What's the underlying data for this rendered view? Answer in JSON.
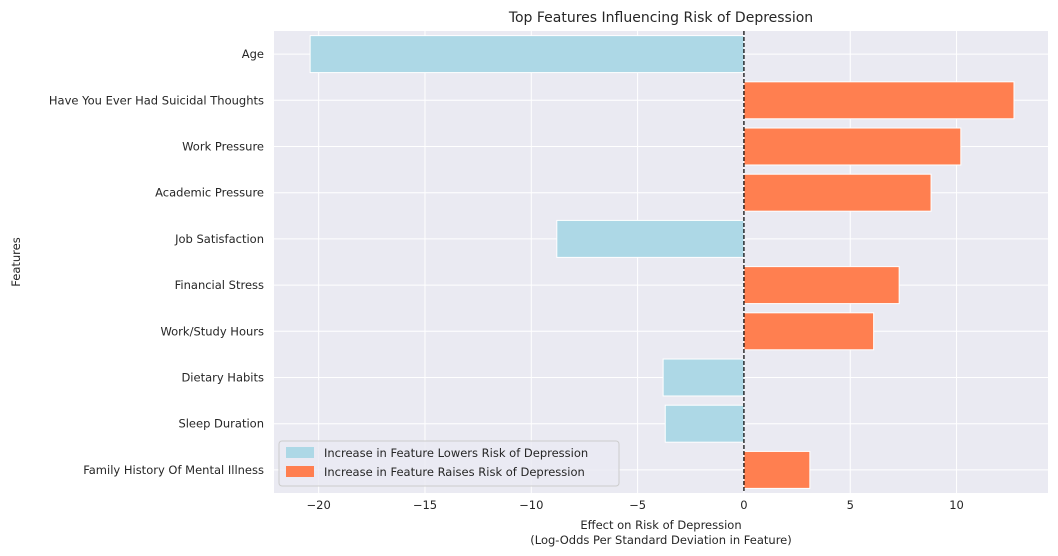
{
  "chart_data": {
    "type": "bar",
    "orientation": "horizontal",
    "title": "Top Features Influencing Risk of Depression",
    "xlabel_line1": "Effect on Risk of Depression",
    "xlabel_line2": "(Log-Odds Per Standard Deviation in Feature)",
    "ylabel": "Features",
    "xlim": [
      -22.1,
      14.3
    ],
    "xticks": [
      -20,
      -15,
      -10,
      -5,
      0,
      5,
      10
    ],
    "xtick_labels": [
      "−20",
      "−15",
      "−10",
      "−5",
      "0",
      "5",
      "10"
    ],
    "grid": true,
    "reference_line": 0,
    "legend_position": "lower-left",
    "categories": [
      "Age",
      "Have You Ever Had Suicidal Thoughts",
      "Work Pressure",
      "Academic Pressure",
      "Job Satisfaction",
      "Financial Stress",
      "Work/Study Hours",
      "Dietary Habits",
      "Sleep Duration",
      "Family History Of Mental Illness"
    ],
    "values": [
      -20.4,
      12.7,
      10.2,
      8.8,
      -8.8,
      7.3,
      6.1,
      -3.8,
      -3.7,
      3.1
    ],
    "legend": [
      {
        "label": "Increase in Feature Lowers Risk of Depression",
        "color": "#add8e6"
      },
      {
        "label": "Increase in Feature Raises Risk of Depression",
        "color": "#ff7f50"
      }
    ],
    "colors": {
      "negative": "#add8e6",
      "positive": "#ff7f50",
      "plot_background": "#eaeaf2",
      "grid": "#ffffff"
    }
  }
}
